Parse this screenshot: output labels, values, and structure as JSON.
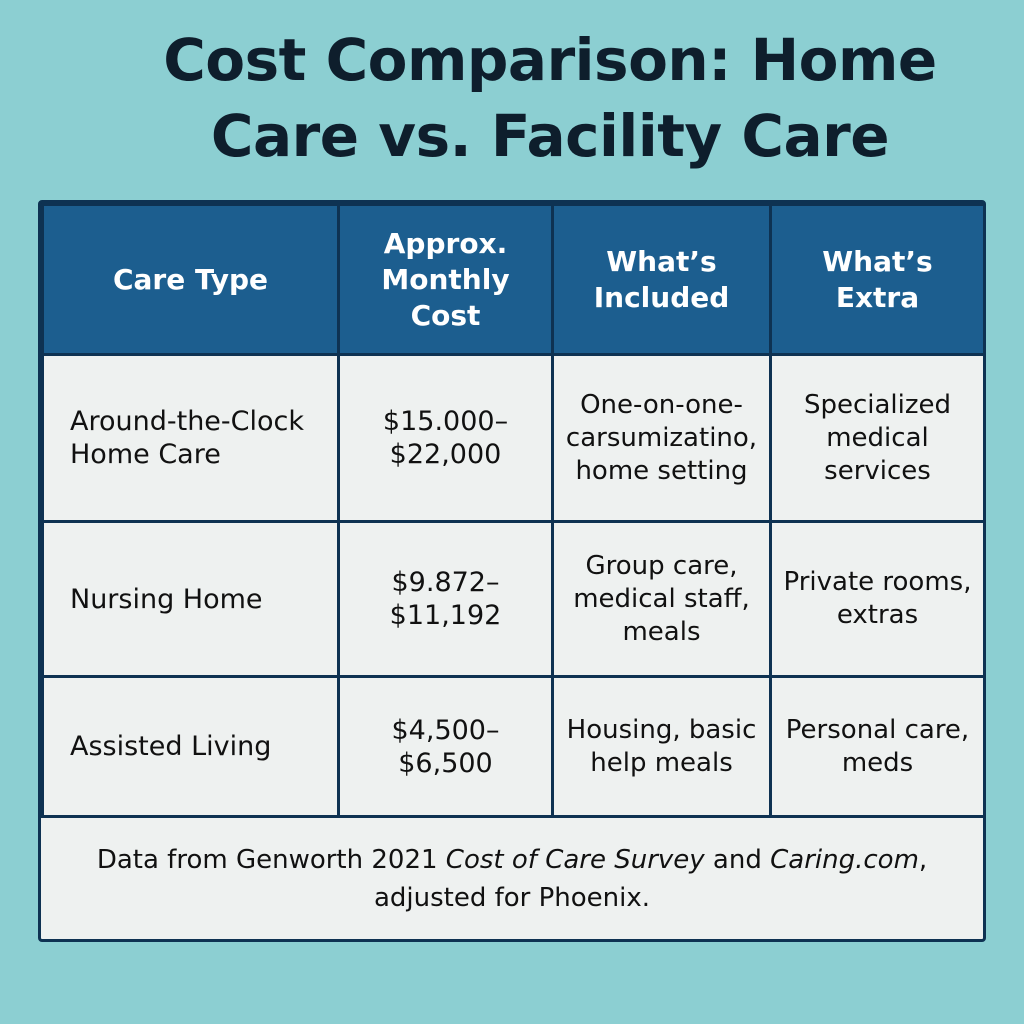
{
  "title": "Cost Comparison: Home Care vs. Facility Care",
  "chart_data": {
    "type": "table",
    "columns": [
      "Care Type",
      "Approx. Monthly Cost",
      "What’s Included",
      "What’s Extra"
    ],
    "rows": [
      {
        "care_type": "Around-the-Clock Home Care",
        "monthly_cost": "$15.000–$22,000",
        "included": "One-on-one-carsumizatino, home setting",
        "extra": "Specialized medical services"
      },
      {
        "care_type": "Nursing Home",
        "monthly_cost": "$9.872–$11,192",
        "included": "Group care, medical staff, meals",
        "extra": "Private rooms, extras"
      },
      {
        "care_type": "Assisted Living",
        "monthly_cost": "$4,500–$6,500",
        "included": "Housing, basic help meals",
        "extra": "Personal care, meds"
      }
    ]
  },
  "footer": {
    "prefix": "Data from Genworth 2021 ",
    "survey": "Cost of Care Survey",
    "middle": " and ",
    "site": "Caring.com",
    "suffix": ", adjusted for Phoenix."
  },
  "colors": {
    "background": "#8ccfd2",
    "header_fill": "#1c5e8f",
    "border": "#0e3252",
    "cell_fill": "#eef1f0",
    "title_text": "#0e1e2c"
  }
}
